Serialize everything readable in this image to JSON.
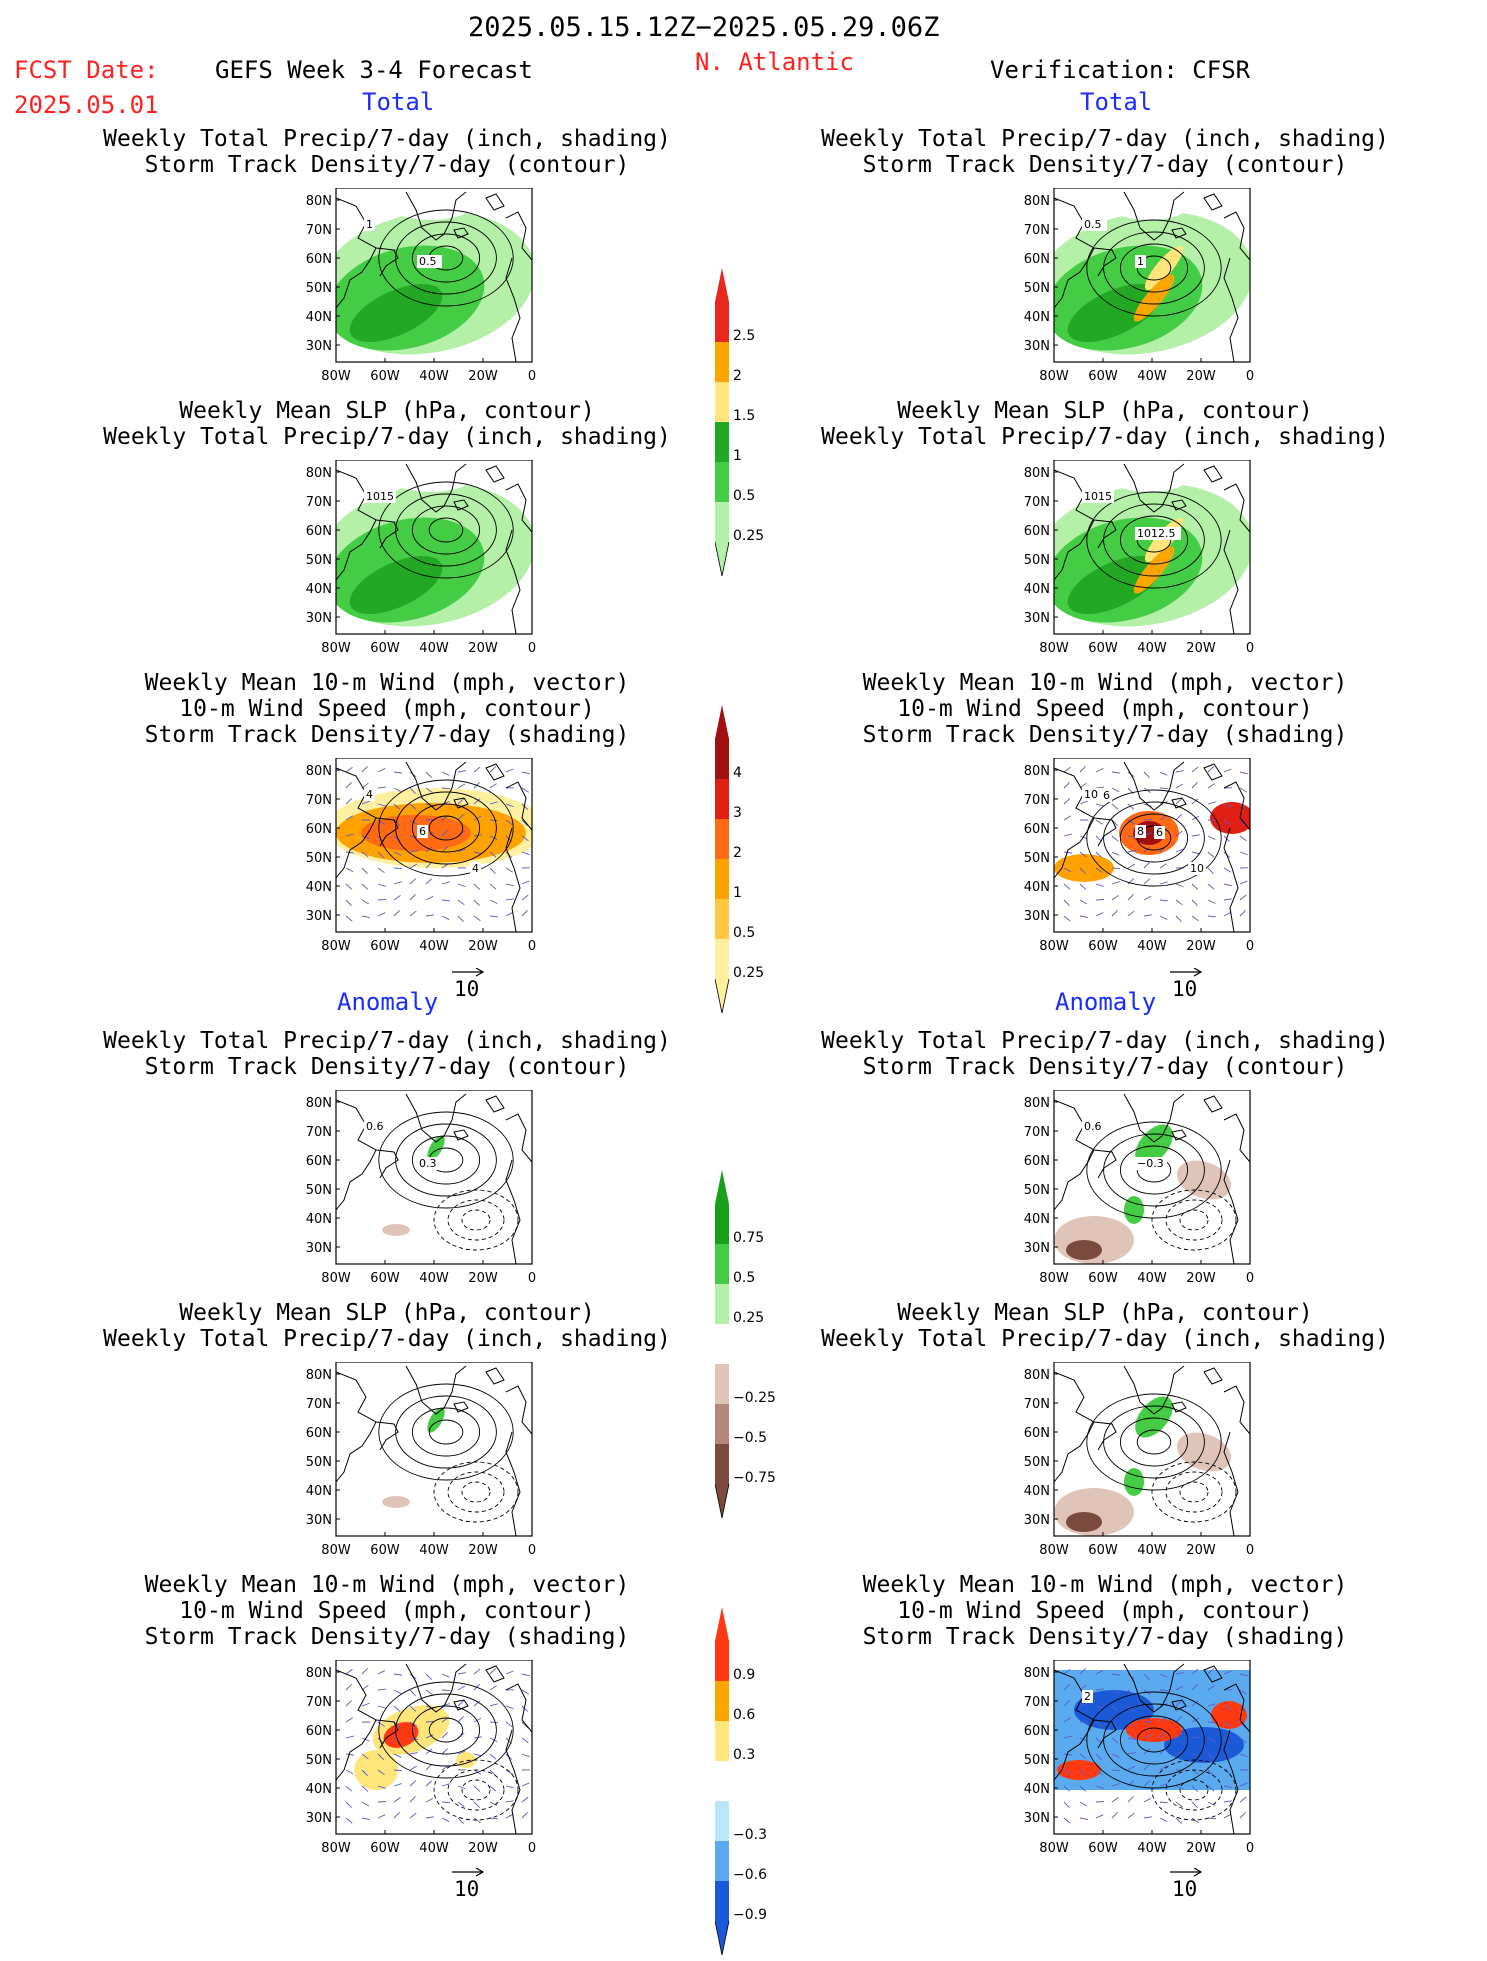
{
  "header": {
    "date_range": "2025.05.15.12Z−2025.05.29.06Z",
    "fcst_label": "FCST Date:",
    "fcst_date": "2025.05.01",
    "model": "GEFS Week 3-4 Forecast",
    "region": "N. Atlantic",
    "verification": "Verification: CFSR"
  },
  "sections": {
    "total": "Total",
    "anomaly": "Anomaly"
  },
  "panel_titles": {
    "precip_track": [
      "Weekly Total Precip/7-day (inch, shading)",
      "Storm Track Density/7-day (contour)"
    ],
    "slp_precip": [
      "Weekly Mean SLP (hPa, contour)",
      "Weekly Total Precip/7-day (inch, shading)"
    ],
    "wind_track": [
      "Weekly Mean 10-m Wind (mph, vector)",
      "10-m Wind Speed (mph, contour)",
      "Storm Track Density/7-day (shading)"
    ]
  },
  "axes": {
    "lat_ticks": [
      "80N",
      "70N",
      "60N",
      "50N",
      "40N",
      "30N"
    ],
    "lon_ticks": [
      "80W",
      "60W",
      "40W",
      "20W",
      "0"
    ]
  },
  "vector_ref": "10",
  "colorbars": {
    "precip_total": {
      "labels": [
        "2.5",
        "2",
        "1.5",
        "1",
        "0.5",
        "0.25"
      ],
      "colors": [
        "#e8281e",
        "#ffa500",
        "#ffe57a",
        "#22a822",
        "#44cc44",
        "#b4f0a8"
      ]
    },
    "track_total": {
      "labels": [
        "4",
        "3",
        "2",
        "1",
        "0.5",
        "0.25"
      ],
      "colors": [
        "#a01010",
        "#e01e12",
        "#ff6a12",
        "#ffa200",
        "#ffc840",
        "#fff0a0"
      ]
    },
    "precip_anom": {
      "labels": [
        "0.75",
        "0.5",
        "0.25",
        "−0.25",
        "−0.5",
        "−0.75"
      ],
      "colors": [
        "#18a018",
        "#44cc44",
        "#b4f0a8",
        "#ffffff",
        "#e0c4b8",
        "#b4877a",
        "#7a4a3c"
      ]
    },
    "track_anom": {
      "labels": [
        "0.9",
        "0.6",
        "0.3",
        "−0.3",
        "−0.6",
        "−0.9"
      ],
      "colors": [
        "#ff3a12",
        "#ffa500",
        "#ffe57a",
        "#ffffff",
        "#b8e8f8",
        "#5aaaf0",
        "#1a5ad8"
      ]
    },
    "colors_common": {
      "tip_line": "#000000"
    }
  },
  "contour_labels": {
    "fcst_total_precip": [
      "1",
      "0.5"
    ],
    "verif_total_precip": [
      "0.5",
      "1"
    ],
    "fcst_total_slp": [
      "1015"
    ],
    "verif_total_slp": [
      "1015",
      "1012.5"
    ],
    "fcst_total_wind": [
      "4",
      "6",
      "4"
    ],
    "verif_total_wind": [
      "10",
      "8",
      "10",
      "6",
      "6"
    ],
    "fcst_anom_precip": [
      "0.6",
      "0.3"
    ],
    "verif_anom_precip": [
      "0.6",
      "−0.3"
    ],
    "verif_anom_wind": [
      "2"
    ]
  }
}
